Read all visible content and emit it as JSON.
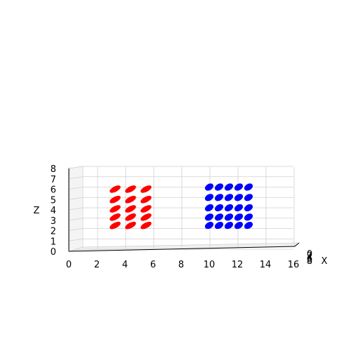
{
  "chart_data": {
    "type": "scatter",
    "projection": "3d",
    "title": "",
    "xlabel": "X",
    "ylabel": "",
    "zlabel": "Z",
    "x_ticks": [
      "0",
      "2",
      "4",
      "6",
      "8",
      "10",
      "12",
      "14",
      "16"
    ],
    "z_ticks": [
      "0",
      "1",
      "2",
      "3",
      "4",
      "5",
      "6",
      "7",
      "8"
    ],
    "y_ticks_visible": [
      "0",
      "2",
      "4",
      "6",
      "8"
    ],
    "xlim": [
      0,
      16
    ],
    "zlim": [
      0,
      8
    ],
    "grid": true,
    "series": [
      {
        "color": "#ff0000",
        "marker": "capsule",
        "x": [
          3.3,
          4.4,
          5.5,
          3.3,
          4.4,
          5.5,
          3.3,
          4.4,
          5.5,
          3.3,
          4.4,
          5.5,
          3.3,
          4.4,
          5.5
        ],
        "z": [
          5.8,
          5.8,
          5.8,
          4.8,
          4.8,
          4.8,
          3.9,
          3.9,
          3.9,
          3.1,
          3.1,
          3.1,
          2.3,
          2.3,
          2.3
        ]
      },
      {
        "color": "#0000ff",
        "marker": "capsule",
        "x": [
          10.0,
          10.7,
          11.4,
          12.1,
          12.8,
          10.0,
          10.7,
          11.4,
          12.1,
          12.8,
          10.0,
          10.7,
          11.4,
          12.1,
          12.8,
          10.0,
          10.7,
          11.4,
          12.1,
          12.8,
          10.0,
          10.7,
          11.4,
          12.1,
          12.8
        ],
        "z": [
          6.0,
          6.0,
          6.0,
          6.0,
          6.0,
          5.0,
          5.0,
          5.0,
          5.0,
          5.0,
          4.0,
          4.0,
          4.0,
          4.0,
          4.0,
          3.1,
          3.1,
          3.1,
          3.1,
          3.1,
          2.3,
          2.3,
          2.3,
          2.3,
          2.3
        ]
      }
    ]
  }
}
